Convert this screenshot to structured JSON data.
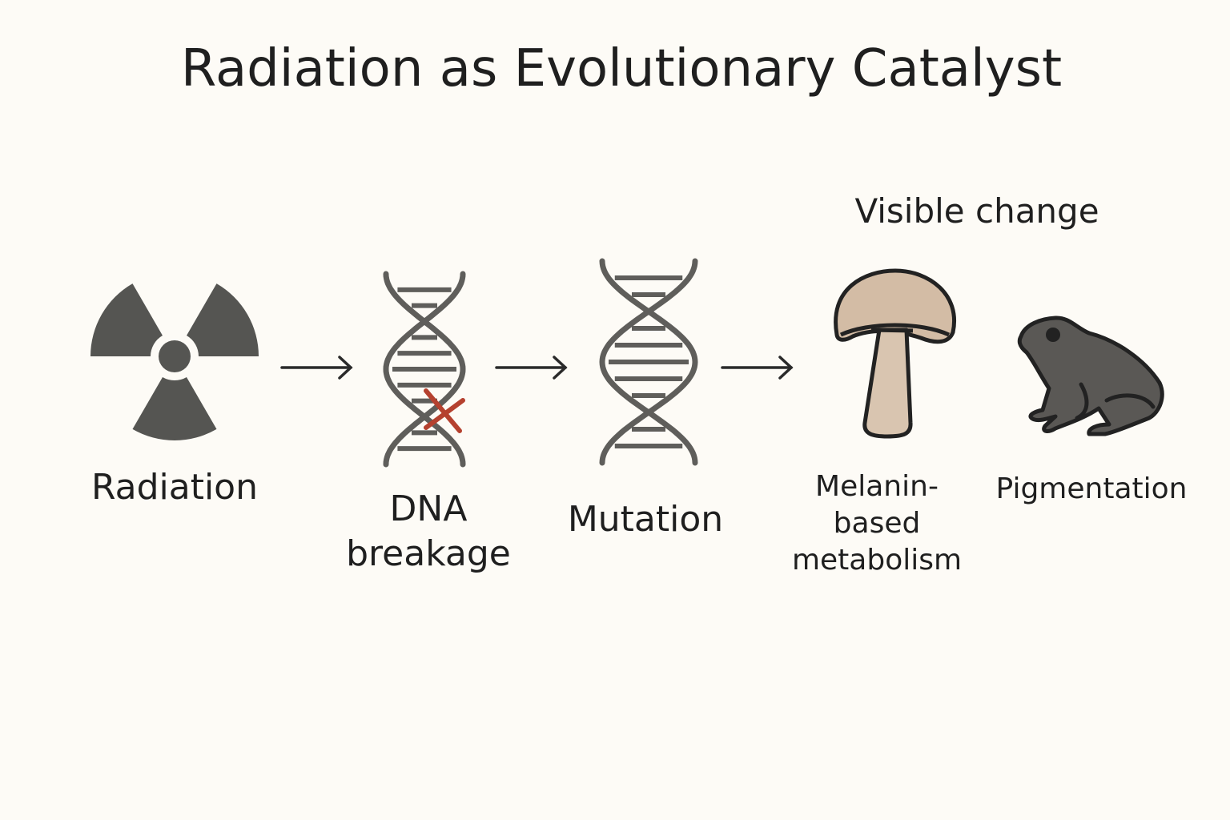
{
  "title": "Radiation as Evolutionary Catalyst",
  "group_label": "Visible change",
  "steps": [
    {
      "label": "Radiation",
      "icon": "radiation-trefoil-icon"
    },
    {
      "label_lines": [
        "DNA",
        "breakage"
      ],
      "icon": "broken-dna-icon"
    },
    {
      "label": "Mutation",
      "icon": "dna-helix-icon"
    },
    {
      "label_lines": [
        "Melanin-",
        "based",
        "metabolism"
      ],
      "icon": "mushroom-icon"
    },
    {
      "label": "Pigmentation",
      "icon": "frog-icon"
    }
  ],
  "colors": {
    "background": "#fdfbf6",
    "icon_dark": "#555552",
    "break_mark": "#b5412f",
    "mushroom_fill": "#d3bca5",
    "frog_fill": "#5a5855",
    "outline": "#222222"
  }
}
